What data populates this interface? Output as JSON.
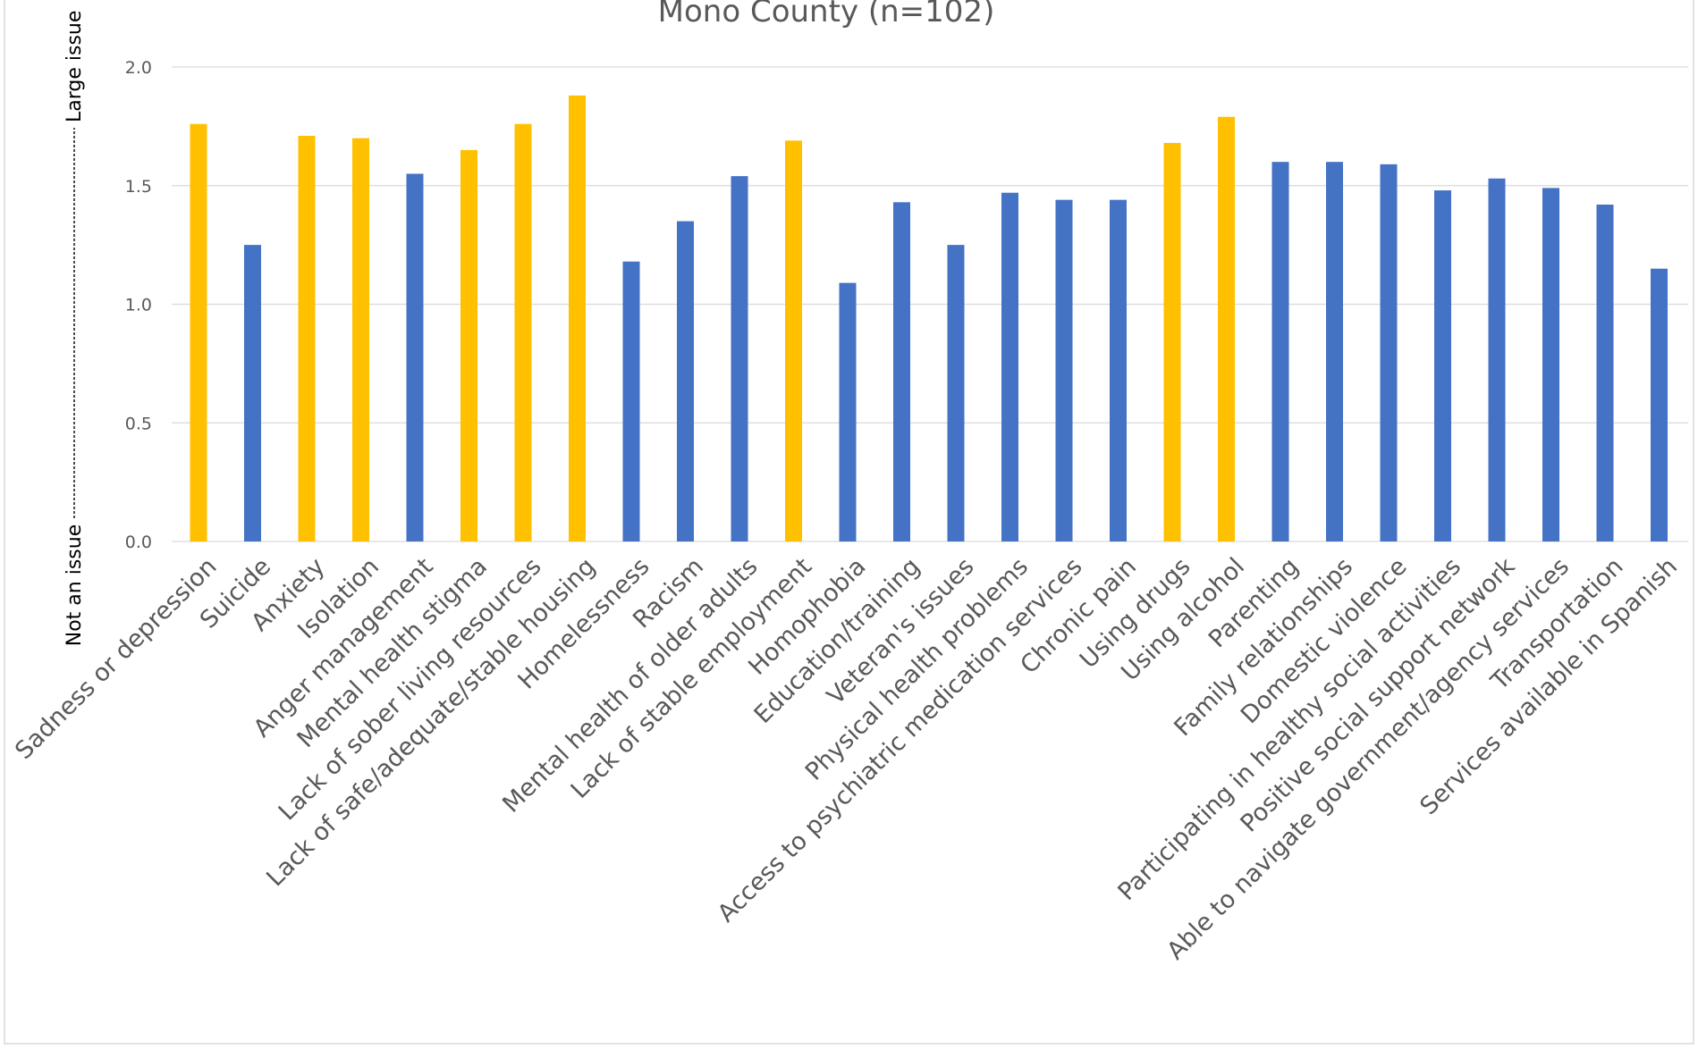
{
  "chart_data": {
    "type": "bar",
    "title": "Mono County (n=102)",
    "ylabel": {
      "low": "Not an issue",
      "high": "Large issue"
    },
    "ylim": [
      0,
      2.0
    ],
    "yticks": [
      "0.0",
      "0.5",
      "1.0",
      "1.5",
      "2.0"
    ],
    "grid": true,
    "colors": {
      "highlight": "#FFC000",
      "default": "#4472C4",
      "grid": "#D9D9D9",
      "text": "#595959"
    },
    "categories": [
      "Sadness or depression",
      "Suicide",
      "Anxiety",
      "Isolation",
      "Anger management",
      "Mental health stigma",
      "Lack of sober living resources",
      "Lack of safe/adequate/stable housing",
      "Homelessness",
      "Racism",
      "Mental health of older adults",
      "Lack of stable employment",
      "Homophobia",
      "Education/training",
      "Veteran's issues",
      "Physical health problems",
      "Access to psychiatric medication services",
      "Chronic pain",
      "Using drugs",
      "Using alcohol",
      "Parenting",
      "Family relationships",
      "Domestic violence",
      "Participating in healthy social activities",
      "Positive social support network",
      "Able to navigate government/agency services",
      "Transportation",
      "Services available in Spanish"
    ],
    "values": [
      1.76,
      1.25,
      1.71,
      1.7,
      1.55,
      1.65,
      1.76,
      1.88,
      1.18,
      1.35,
      1.54,
      1.69,
      1.09,
      1.43,
      1.25,
      1.47,
      1.44,
      1.44,
      1.68,
      1.79,
      1.6,
      1.6,
      1.59,
      1.48,
      1.53,
      1.49,
      1.42,
      1.15
    ],
    "highlighted": [
      true,
      false,
      true,
      true,
      false,
      true,
      true,
      true,
      false,
      false,
      false,
      true,
      false,
      false,
      false,
      false,
      false,
      false,
      true,
      true,
      false,
      false,
      false,
      false,
      false,
      false,
      false,
      false
    ]
  }
}
